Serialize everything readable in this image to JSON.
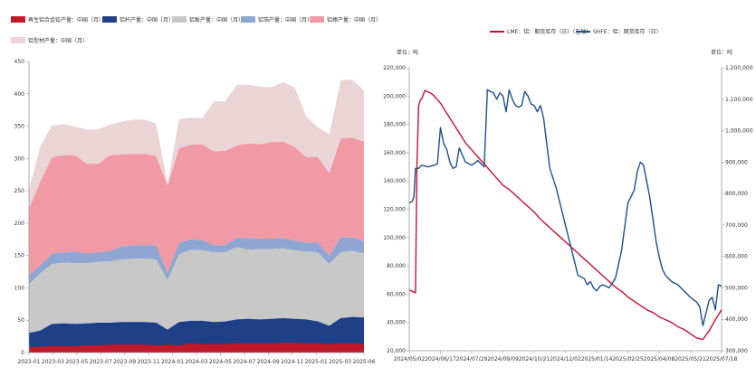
{
  "chart_data": [
    {
      "type": "area",
      "stacked": true,
      "title": "",
      "legend": [
        {
          "name": "再生铝合金锭产量：中国（月）",
          "color": "#c0192a"
        },
        {
          "name": "铝杆产量：中国（月）",
          "color": "#1f3f86"
        },
        {
          "name": "铝板产量：中国（月）",
          "color": "#c8c8c8"
        },
        {
          "name": "铝箔产量：中国（月）",
          "color": "#8ea6d1"
        },
        {
          "name": "铝棒产量：中国（月）",
          "color": "#f19aa5"
        },
        {
          "name": "铝型材产量：中国（月）",
          "color": "#ead4d6"
        }
      ],
      "x_ticks": [
        "2023-01",
        "2023-03",
        "2023-05",
        "2023-07",
        "2023-09",
        "2023-11",
        "2024-01",
        "2024-03",
        "2024-05",
        "2024-07",
        "2024-09",
        "2024-11",
        "2025-01",
        "2025-03",
        "2025-06"
      ],
      "ylim": [
        0,
        450
      ],
      "yticks": [
        0,
        50,
        100,
        150,
        200,
        250,
        300,
        350,
        400,
        450
      ],
      "x_index": [
        0,
        1,
        2,
        3,
        4,
        5,
        6,
        7,
        8,
        9,
        10,
        11,
        12,
        13,
        14,
        15,
        16,
        17,
        18,
        19,
        20,
        21,
        22,
        23,
        24,
        25,
        26,
        27,
        28,
        29
      ],
      "series": [
        {
          "name": "再生铝合金锭产量：中国（月）",
          "values": [
            7,
            8,
            9,
            9,
            9,
            10,
            10,
            11,
            11,
            11,
            11,
            10,
            11,
            10,
            13,
            12,
            12,
            12,
            13,
            13,
            13,
            13,
            14,
            14,
            13,
            13,
            12,
            13,
            13,
            12
          ]
        },
        {
          "name": "铝杆产量：中国（月）",
          "values": [
            29,
            33,
            43,
            44,
            43,
            44,
            45,
            45,
            46,
            46,
            46,
            45,
            34,
            46,
            48,
            48,
            46,
            47,
            50,
            51,
            50,
            51,
            52,
            51,
            50,
            47,
            40,
            52,
            54,
            53
          ]
        },
        {
          "name": "铝板产量：中国（月）",
          "values": [
            105,
            123,
            137,
            139,
            138,
            138,
            140,
            141,
            144,
            145,
            145,
            144,
            112,
            152,
            159,
            158,
            155,
            155,
            163,
            159,
            160,
            160,
            161,
            158,
            156,
            155,
            137,
            155,
            157,
            153
          ]
        },
        {
          "name": "铝箔产量：中国（月）",
          "values": [
            120,
            135,
            153,
            155,
            156,
            153,
            155,
            157,
            164,
            166,
            166,
            166,
            123,
            170,
            175,
            174,
            166,
            166,
            177,
            177,
            176,
            176,
            177,
            173,
            170,
            170,
            150,
            178,
            178,
            172
          ]
        },
        {
          "name": "铝棒产量：中国（月）",
          "values": [
            222,
            265,
            302,
            305,
            305,
            292,
            292,
            305,
            306,
            307,
            307,
            304,
            258,
            316,
            321,
            322,
            311,
            312,
            320,
            323,
            322,
            325,
            326,
            318,
            302,
            302,
            277,
            331,
            332,
            326
          ]
        },
        {
          "name": "铝型材产量：中国（月）",
          "values": [
            252,
            320,
            351,
            353,
            349,
            345,
            345,
            352,
            357,
            360,
            360,
            354,
            260,
            361,
            363,
            362,
            388,
            389,
            414,
            414,
            411,
            410,
            418,
            410,
            365,
            348,
            338,
            421,
            422,
            405
          ]
        }
      ]
    },
    {
      "type": "line",
      "title": "",
      "legend": [
        {
          "name": "LME：铝：期货库存（日）（左轴）",
          "color": "#c8102e"
        },
        {
          "name": "SHFE：铝：期货库存（日）",
          "color": "#1f4e8c"
        }
      ],
      "ylabel_left": "单位：吨",
      "ylabel_right": "单位：吨",
      "ylim_left": [
        20000,
        220000
      ],
      "ylim_right": [
        300000,
        1200000
      ],
      "yticks_left": [
        "20,000",
        "40,000",
        "60,000",
        "80,000",
        "100,000",
        "120,000",
        "140,000",
        "160,000",
        "180,000",
        "200,000",
        "220,000"
      ],
      "yticks_right": [
        "300,000",
        "400,000",
        "500,000",
        "600,000",
        "700,000",
        "800,000",
        "900,000",
        "1,000,000",
        "1,100,000",
        "1,200,000"
      ],
      "x_ticks": [
        "2024/05/02",
        "2024/06/17",
        "2024/07/29",
        "2024/09/09",
        "2024/10/21",
        "2024/12/02",
        "2025/01/14",
        "2025/02/25",
        "2025/04/08",
        "2025/05/21",
        "2025/07/18"
      ],
      "x_range": [
        0,
        100
      ],
      "series": [
        {
          "name": "LME：铝：期货库存（日）（左轴）",
          "axis": "left",
          "x": [
            0,
            1,
            2,
            2.5,
            3,
            3.5,
            4,
            5,
            6,
            7,
            8,
            10,
            12,
            14,
            16,
            18,
            20,
            22,
            24,
            26,
            28,
            30,
            32,
            34,
            36,
            38,
            40,
            42,
            44,
            46,
            48,
            50,
            52,
            54,
            56,
            58,
            60,
            62,
            64,
            66,
            68,
            70,
            72,
            74,
            76,
            78,
            80,
            82,
            84,
            86,
            88,
            90,
            92,
            94,
            96,
            98,
            100
          ],
          "y": [
            63000,
            62000,
            61000,
            154000,
            193000,
            197000,
            198000,
            204000,
            203000,
            202000,
            200000,
            195000,
            188000,
            181000,
            174000,
            167000,
            162000,
            157000,
            152000,
            147000,
            142000,
            137000,
            134000,
            130000,
            126000,
            122000,
            118000,
            113000,
            109000,
            105000,
            101000,
            97000,
            93000,
            89000,
            85000,
            81000,
            77000,
            73000,
            69000,
            65000,
            62000,
            58000,
            55000,
            52000,
            49000,
            47000,
            44000,
            42000,
            40000,
            37000,
            35000,
            32000,
            29000,
            28000,
            34000,
            42000,
            49000
          ]
        },
        {
          "name": "SHFE：铝：期货库存（日）",
          "axis": "right",
          "x": [
            0,
            1,
            1.5,
            2,
            3,
            4,
            6,
            8,
            9,
            10,
            11,
            12,
            13,
            14,
            15,
            16,
            18,
            20,
            22,
            24,
            25,
            26,
            27,
            28,
            29,
            30,
            31,
            32,
            33,
            34,
            35,
            36,
            37,
            38,
            39,
            40,
            41,
            42,
            43,
            44,
            45,
            46,
            47,
            48,
            50,
            52,
            54,
            56,
            57,
            58,
            59,
            60,
            61,
            62,
            64,
            66,
            68,
            70,
            71,
            72,
            73,
            74,
            75,
            76,
            77,
            78,
            79,
            80,
            81,
            82,
            84,
            86,
            88,
            90,
            92,
            93,
            94,
            95,
            96,
            97,
            98,
            99,
            100
          ],
          "y": [
            770000,
            775000,
            790000,
            880000,
            880000,
            890000,
            885000,
            890000,
            895000,
            1010000,
            960000,
            940000,
            900000,
            880000,
            885000,
            945000,
            900000,
            890000,
            905000,
            885000,
            1130000,
            1125000,
            1120000,
            1100000,
            1120000,
            1110000,
            1060000,
            1130000,
            1100000,
            1080000,
            1075000,
            1080000,
            1125000,
            1110000,
            1085000,
            1080000,
            1060000,
            1080000,
            1040000,
            960000,
            880000,
            850000,
            820000,
            780000,
            700000,
            620000,
            540000,
            530000,
            510000,
            520000,
            500000,
            490000,
            505000,
            510000,
            500000,
            530000,
            620000,
            770000,
            790000,
            810000,
            870000,
            900000,
            890000,
            840000,
            790000,
            720000,
            650000,
            600000,
            560000,
            540000,
            520000,
            510000,
            490000,
            470000,
            455000,
            440000,
            380000,
            420000,
            460000,
            470000,
            430000,
            510000,
            505000
          ]
        }
      ]
    }
  ]
}
